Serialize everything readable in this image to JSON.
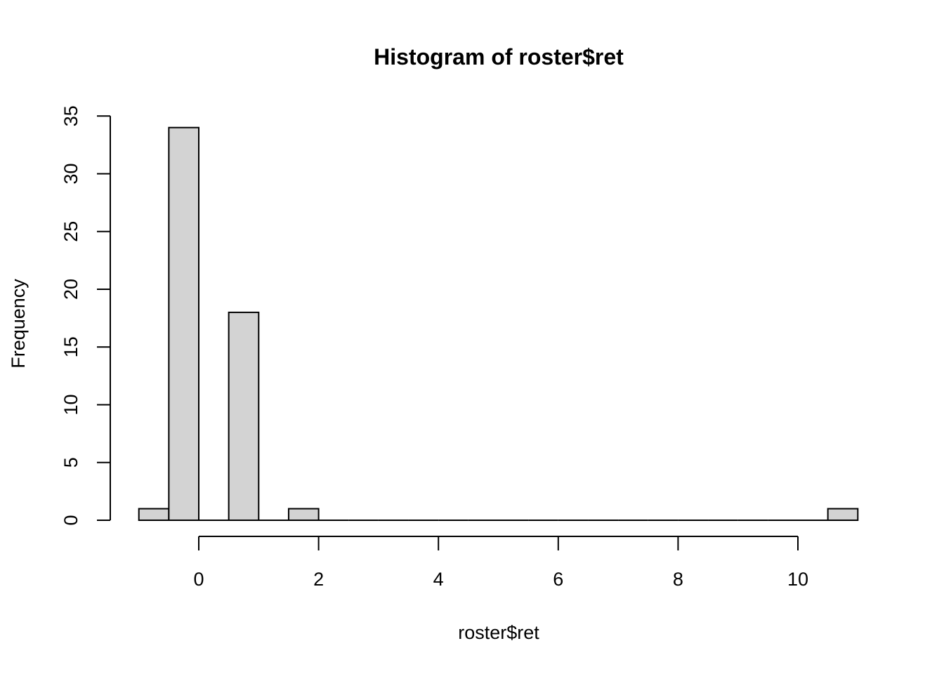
{
  "chart_data": {
    "type": "bar",
    "title": "Histogram of roster$ret",
    "xlabel": "roster$ret",
    "ylabel": "Frequency",
    "bins": [
      {
        "start": -1.0,
        "end": -0.5,
        "count": 1
      },
      {
        "start": -0.5,
        "end": 0.0,
        "count": 34
      },
      {
        "start": 0.0,
        "end": 0.5,
        "count": 0
      },
      {
        "start": 0.5,
        "end": 1.0,
        "count": 18
      },
      {
        "start": 1.0,
        "end": 1.5,
        "count": 0
      },
      {
        "start": 1.5,
        "end": 2.0,
        "count": 1
      },
      {
        "start": 2.0,
        "end": 2.5,
        "count": 0
      },
      {
        "start": 2.5,
        "end": 3.0,
        "count": 0
      },
      {
        "start": 3.0,
        "end": 3.5,
        "count": 0
      },
      {
        "start": 3.5,
        "end": 4.0,
        "count": 0
      },
      {
        "start": 4.0,
        "end": 4.5,
        "count": 0
      },
      {
        "start": 4.5,
        "end": 5.0,
        "count": 0
      },
      {
        "start": 5.0,
        "end": 5.5,
        "count": 0
      },
      {
        "start": 5.5,
        "end": 6.0,
        "count": 0
      },
      {
        "start": 6.0,
        "end": 6.5,
        "count": 0
      },
      {
        "start": 6.5,
        "end": 7.0,
        "count": 0
      },
      {
        "start": 7.0,
        "end": 7.5,
        "count": 0
      },
      {
        "start": 7.5,
        "end": 8.0,
        "count": 0
      },
      {
        "start": 8.0,
        "end": 8.5,
        "count": 0
      },
      {
        "start": 8.5,
        "end": 9.0,
        "count": 0
      },
      {
        "start": 9.0,
        "end": 9.5,
        "count": 0
      },
      {
        "start": 9.5,
        "end": 10.0,
        "count": 0
      },
      {
        "start": 10.0,
        "end": 10.5,
        "count": 0
      },
      {
        "start": 10.5,
        "end": 11.0,
        "count": 1
      }
    ],
    "xticks": [
      0,
      2,
      4,
      6,
      8,
      10
    ],
    "xtick_labels": [
      "0",
      "2",
      "4",
      "6",
      "8",
      "10"
    ],
    "yticks": [
      0,
      5,
      10,
      15,
      20,
      25,
      30,
      35
    ],
    "ytick_labels": [
      "0",
      "5",
      "10",
      "15",
      "20",
      "25",
      "30",
      "35"
    ],
    "xlim": [
      -1,
      11
    ],
    "ylim": [
      0,
      35
    ],
    "grid": false,
    "colors": {
      "bar_fill": "#d3d3d3",
      "bar_stroke": "#000000"
    }
  }
}
